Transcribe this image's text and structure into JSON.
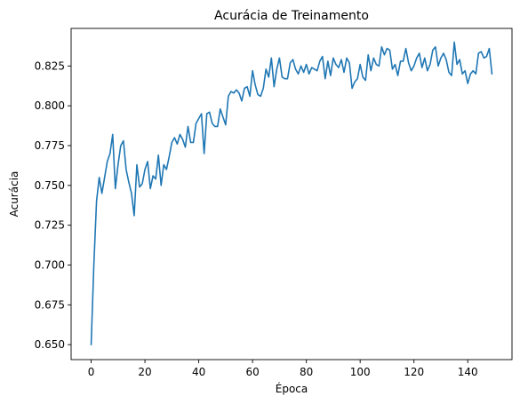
{
  "chart_data": {
    "type": "line",
    "title": "Acurácia de Treinamento",
    "xlabel": "Época",
    "ylabel": "Acurácia",
    "xlim": [
      -7.45,
      156.45
    ],
    "ylim": [
      0.6406,
      0.8486
    ],
    "xticks": [
      0,
      20,
      40,
      60,
      80,
      100,
      120,
      140
    ],
    "yticks": [
      0.65,
      0.675,
      0.7,
      0.725,
      0.75,
      0.775,
      0.8,
      0.825
    ],
    "ytick_labels": [
      "0.650",
      "0.675",
      "0.700",
      "0.725",
      "0.750",
      "0.775",
      "0.800",
      "0.825"
    ],
    "grid": false,
    "line_color": "#1f77b4",
    "series": [
      {
        "values": [
          0.65,
          0.7,
          0.74,
          0.755,
          0.745,
          0.755,
          0.765,
          0.77,
          0.782,
          0.748,
          0.763,
          0.775,
          0.778,
          0.76,
          0.752,
          0.745,
          0.731,
          0.763,
          0.749,
          0.751,
          0.76,
          0.765,
          0.748,
          0.756,
          0.754,
          0.769,
          0.75,
          0.763,
          0.76,
          0.768,
          0.777,
          0.78,
          0.776,
          0.782,
          0.779,
          0.774,
          0.787,
          0.777,
          0.777,
          0.789,
          0.792,
          0.795,
          0.77,
          0.795,
          0.796,
          0.789,
          0.787,
          0.787,
          0.798,
          0.793,
          0.788,
          0.806,
          0.809,
          0.808,
          0.81,
          0.808,
          0.803,
          0.811,
          0.812,
          0.806,
          0.822,
          0.813,
          0.807,
          0.806,
          0.811,
          0.823,
          0.818,
          0.83,
          0.812,
          0.823,
          0.83,
          0.818,
          0.817,
          0.817,
          0.827,
          0.829,
          0.823,
          0.82,
          0.825,
          0.821,
          0.826,
          0.82,
          0.824,
          0.823,
          0.822,
          0.828,
          0.831,
          0.817,
          0.828,
          0.819,
          0.83,
          0.826,
          0.824,
          0.829,
          0.821,
          0.83,
          0.827,
          0.811,
          0.815,
          0.817,
          0.826,
          0.818,
          0.816,
          0.832,
          0.822,
          0.83,
          0.826,
          0.825,
          0.837,
          0.832,
          0.836,
          0.835,
          0.823,
          0.826,
          0.819,
          0.828,
          0.828,
          0.836,
          0.827,
          0.822,
          0.825,
          0.83,
          0.833,
          0.824,
          0.83,
          0.822,
          0.826,
          0.835,
          0.837,
          0.825,
          0.83,
          0.833,
          0.829,
          0.821,
          0.819,
          0.84,
          0.826,
          0.829,
          0.82,
          0.822,
          0.814,
          0.82,
          0.822,
          0.82,
          0.833,
          0.834,
          0.83,
          0.831,
          0.836,
          0.82
        ]
      }
    ]
  }
}
